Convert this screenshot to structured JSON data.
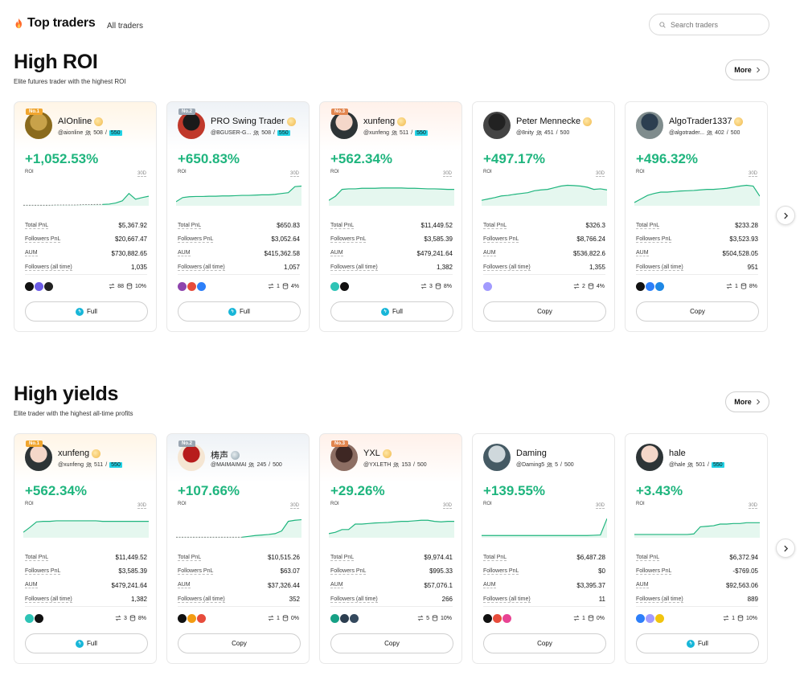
{
  "header": {
    "title": "Top traders",
    "nav_link": "All traders",
    "search_placeholder": "Search traders"
  },
  "sections": [
    {
      "title": "High ROI",
      "subtitle": "Elite futures trader with the highest ROI",
      "more_label": "More",
      "cards": [
        {
          "rank": "No.1",
          "name": "AIOnline",
          "handle": "@aionline",
          "followers": "508",
          "cap": "550",
          "cap_hl": true,
          "badge": "gold",
          "roi": "+1,052.53%",
          "roi_label": "ROI",
          "period": "30D",
          "total_pnl": "$5,367.92",
          "followers_pnl": "$20,667.47",
          "aum": "$730,882.65",
          "followers_all": "1,035",
          "copies": "88",
          "share": "10%",
          "action": "Full",
          "action_type": "full",
          "coins": [
            "#111111",
            "#6c5ce7",
            "#222222"
          ],
          "spark": [
            0.02,
            0.02,
            0.02,
            0.02,
            0.02,
            0.03,
            0.03,
            0.03,
            0.03,
            0.04,
            0.04,
            0.05,
            0.05,
            0.06,
            0.1,
            0.18,
            0.45,
            0.24,
            0.3,
            0.35
          ],
          "dashed_until": 12
        },
        {
          "rank": "No.2",
          "name": "PRO Swing Trader",
          "handle": "@BGUSER-G...",
          "followers": "508",
          "cap": "550",
          "cap_hl": true,
          "badge": "gold",
          "roi": "+650.83%",
          "roi_label": "ROI",
          "period": "30D",
          "total_pnl": "$650.83",
          "followers_pnl": "$3,052.64",
          "aum": "$415,362.58",
          "followers_all": "1,057",
          "copies": "1",
          "share": "4%",
          "action": "Full",
          "action_type": "full",
          "coins": [
            "#8e44ad",
            "#e74c3c",
            "#2d7ff9"
          ],
          "spark": [
            0.15,
            0.3,
            0.33,
            0.34,
            0.34,
            0.35,
            0.35,
            0.36,
            0.36,
            0.37,
            0.38,
            0.38,
            0.39,
            0.4,
            0.4,
            0.42,
            0.45,
            0.48,
            0.7,
            0.72
          ],
          "dashed_until": 0
        },
        {
          "rank": "No.3",
          "name": "xunfeng",
          "handle": "@xunfeng",
          "followers": "511",
          "cap": "550",
          "cap_hl": true,
          "badge": "gold",
          "roi": "+562.34%",
          "roi_label": "ROI",
          "period": "30D",
          "total_pnl": "$11,449.52",
          "followers_pnl": "$3,585.39",
          "aum": "$479,241.64",
          "followers_all": "1,382",
          "copies": "3",
          "share": "8%",
          "action": "Full",
          "action_type": "full",
          "coins": [
            "#2ec4b6",
            "#111111"
          ],
          "spark": [
            0.2,
            0.35,
            0.6,
            0.62,
            0.62,
            0.64,
            0.64,
            0.64,
            0.65,
            0.65,
            0.65,
            0.65,
            0.64,
            0.64,
            0.63,
            0.62,
            0.62,
            0.61,
            0.6,
            0.6
          ],
          "dashed_until": 0
        },
        {
          "rank": "",
          "name": "Peter Mennecke",
          "handle": "@8nity",
          "followers": "451",
          "cap": "500",
          "cap_hl": false,
          "badge": "gold",
          "roi": "+497.17%",
          "roi_label": "ROI",
          "period": "30D",
          "total_pnl": "$326.3",
          "followers_pnl": "$8,766.24",
          "aum": "$536,822.6",
          "followers_all": "1,355",
          "copies": "2",
          "share": "4%",
          "action": "Copy",
          "action_type": "copy",
          "coins": [
            "#a29bfe"
          ],
          "spark": [
            0.2,
            0.25,
            0.3,
            0.36,
            0.38,
            0.42,
            0.45,
            0.48,
            0.55,
            0.58,
            0.6,
            0.66,
            0.72,
            0.75,
            0.74,
            0.72,
            0.68,
            0.6,
            0.62,
            0.58
          ],
          "dashed_until": 0
        },
        {
          "rank": "",
          "name": "AlgoTrader1337",
          "handle": "@algotrader...",
          "followers": "402",
          "cap": "500",
          "cap_hl": false,
          "badge": "gold",
          "roi": "+496.32%",
          "roi_label": "ROI",
          "period": "30D",
          "total_pnl": "$233.28",
          "followers_pnl": "$3,523.93",
          "aum": "$504,528.05",
          "followers_all": "951",
          "copies": "1",
          "share": "8%",
          "action": "Copy",
          "action_type": "copy",
          "coins": [
            "#111111",
            "#2d7ff9",
            "#1e88e5"
          ],
          "spark": [
            0.12,
            0.25,
            0.38,
            0.45,
            0.5,
            0.5,
            0.52,
            0.54,
            0.55,
            0.56,
            0.58,
            0.6,
            0.6,
            0.62,
            0.64,
            0.68,
            0.72,
            0.75,
            0.72,
            0.35
          ],
          "dashed_until": 0
        }
      ]
    },
    {
      "title": "High yields",
      "subtitle": "Elite trader with the highest all-time profits",
      "more_label": "More",
      "cards": [
        {
          "rank": "No.1",
          "name": "xunfeng",
          "handle": "@xunfeng",
          "followers": "511",
          "cap": "550",
          "cap_hl": true,
          "badge": "gold",
          "roi": "+562.34%",
          "roi_label": "ROI",
          "period": "30D",
          "total_pnl": "$11,449.52",
          "followers_pnl": "$3,585.39",
          "aum": "$479,241.64",
          "followers_all": "1,382",
          "copies": "3",
          "share": "8%",
          "action": "Full",
          "action_type": "full",
          "coins": [
            "#2ec4b6",
            "#111111"
          ],
          "spark": [
            0.2,
            0.38,
            0.58,
            0.6,
            0.6,
            0.62,
            0.62,
            0.62,
            0.62,
            0.62,
            0.62,
            0.62,
            0.6,
            0.6,
            0.6,
            0.6,
            0.6,
            0.6,
            0.6,
            0.6
          ],
          "dashed_until": 0
        },
        {
          "rank": "No.2",
          "name": "梼声",
          "handle": "@MAIMAIMAI",
          "followers": "245",
          "cap": "500",
          "cap_hl": false,
          "badge": "silver",
          "roi": "+107.66%",
          "roi_label": "ROI",
          "period": "30D",
          "total_pnl": "$10,515.26",
          "followers_pnl": "$63.07",
          "aum": "$37,326.44",
          "followers_all": "352",
          "copies": "1",
          "share": "0%",
          "action": "Copy",
          "action_type": "copy",
          "coins": [
            "#111111",
            "#f39c12",
            "#e74c3c"
          ],
          "spark": [
            0.02,
            0.02,
            0.02,
            0.02,
            0.02,
            0.02,
            0.02,
            0.02,
            0.02,
            0.02,
            0.02,
            0.05,
            0.08,
            0.1,
            0.12,
            0.15,
            0.25,
            0.6,
            0.64,
            0.66
          ],
          "dashed_until": 10
        },
        {
          "rank": "No.3",
          "name": "YXL",
          "handle": "@YXLETH",
          "followers": "153",
          "cap": "500",
          "cap_hl": false,
          "badge": "gold",
          "roi": "+29.26%",
          "roi_label": "ROI",
          "period": "30D",
          "total_pnl": "$9,974.41",
          "followers_pnl": "$995.33",
          "aum": "$57,076.1",
          "followers_all": "266",
          "copies": "5",
          "share": "10%",
          "action": "Copy",
          "action_type": "copy",
          "coins": [
            "#16a085",
            "#2c3e50",
            "#34495e"
          ],
          "spark": [
            0.15,
            0.2,
            0.3,
            0.3,
            0.5,
            0.5,
            0.52,
            0.54,
            0.55,
            0.56,
            0.58,
            0.6,
            0.6,
            0.62,
            0.64,
            0.64,
            0.6,
            0.58,
            0.6,
            0.6
          ],
          "dashed_until": 0
        },
        {
          "rank": "",
          "name": "Daming",
          "handle": "@Daming5",
          "followers": "5",
          "cap": "500",
          "cap_hl": false,
          "badge": "",
          "roi": "+139.55%",
          "roi_label": "ROI",
          "period": "30D",
          "total_pnl": "$6,487.28",
          "followers_pnl": "$0",
          "aum": "$3,395.37",
          "followers_all": "11",
          "copies": "1",
          "share": "0%",
          "action": "Copy",
          "action_type": "copy",
          "coins": [
            "#111111",
            "#e74c3c",
            "#e84393"
          ],
          "spark": [
            0.08,
            0.08,
            0.08,
            0.08,
            0.08,
            0.08,
            0.08,
            0.08,
            0.08,
            0.08,
            0.08,
            0.08,
            0.08,
            0.08,
            0.08,
            0.08,
            0.08,
            0.09,
            0.1,
            0.7
          ],
          "dashed_until": 0
        },
        {
          "rank": "",
          "name": "hale",
          "handle": "@hale",
          "followers": "501",
          "cap": "550",
          "cap_hl": true,
          "badge": "",
          "roi": "+3.43%",
          "roi_label": "ROI",
          "period": "30D",
          "total_pnl": "$6,372.94",
          "followers_pnl": "-$769.05",
          "aum": "$92,563.06",
          "followers_all": "889",
          "copies": "1",
          "share": "10%",
          "action": "Full",
          "action_type": "full",
          "coins": [
            "#2d7ff9",
            "#a29bfe",
            "#f1c40f"
          ],
          "spark": [
            0.12,
            0.12,
            0.12,
            0.12,
            0.12,
            0.12,
            0.12,
            0.12,
            0.12,
            0.14,
            0.4,
            0.42,
            0.44,
            0.5,
            0.5,
            0.52,
            0.52,
            0.55,
            0.55,
            0.55
          ],
          "dashed_until": 0
        }
      ]
    }
  ],
  "colors": {
    "accent_green": "#1fb57e",
    "spark_fill": "#e5f7ef",
    "highlight_cyan": "#22d3e6"
  },
  "labels": {
    "total_pnl": "Total PnL",
    "followers_pnl": "Followers PnL",
    "aum": "AUM",
    "followers_all": "Followers (all time)"
  },
  "icons": {
    "brand": "fire-icon",
    "search": "search-icon",
    "more": "chevron-right-icon",
    "followers": "users-icon",
    "copies": "copy-arrows-icon",
    "share": "database-icon",
    "full": "lightning-icon",
    "next": "chevron-right-icon"
  }
}
